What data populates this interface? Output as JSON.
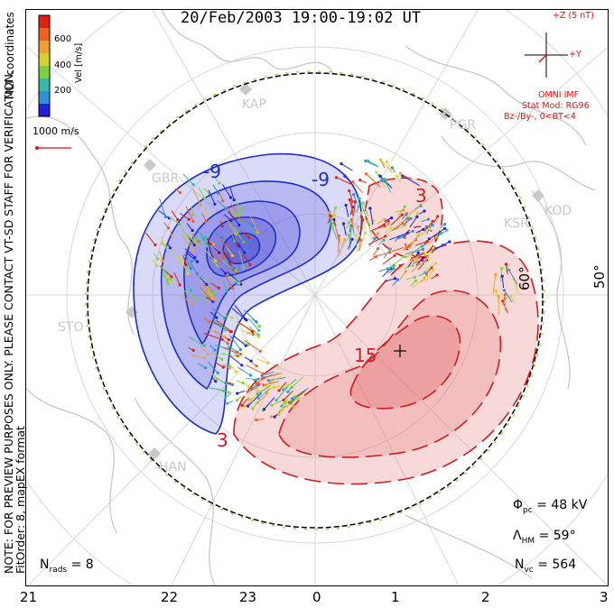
{
  "title": "20/Feb/2003 19:00-19:02 UT",
  "side_text": {
    "coords": "MLT coordinates",
    "note": "NOTE: FOR PREVIEW PURPOSES ONLY. PLEASE CONTACT VT-SD STAFF FOR VERIFICATION.",
    "fit": "FitOrder: 8, mapEX format"
  },
  "colorbar": {
    "label": "Vel [m/s]",
    "ticks": [
      "600",
      "400",
      "200"
    ],
    "colors": [
      "#1f1fe0",
      "#2f8fd8",
      "#37b8a8",
      "#7fd040",
      "#d8d030",
      "#f0a030",
      "#f06020",
      "#e02010"
    ]
  },
  "scale_vector": {
    "label": "1000 m/s",
    "color": "#dd1111"
  },
  "imf": {
    "axis_z": "+Z (5 nT)",
    "axis_y": "+Y",
    "source": "OMNI IMF",
    "stat_mod": "Stat Mod: RG96",
    "condition": "Bz-/By-, 0<BT<4",
    "color": "#dd1111"
  },
  "stations": [
    "KAP",
    "PGR",
    "KOD",
    "KSR",
    "STO",
    "HAN",
    "GBR"
  ],
  "latitude_label_right": "50°",
  "latitude_label_inner": "60°",
  "contour_labels": {
    "negative": [
      "-9",
      "-9"
    ],
    "positive": [
      "3",
      "15",
      "3"
    ]
  },
  "colors": {
    "negative_cell": "#2040c0",
    "positive_cell": "#d03030"
  },
  "stats": {
    "pcp": "= 48 kV",
    "hm": "= 59°",
    "nvc": "= 564",
    "nrads": "= 8"
  },
  "mlt_axis": [
    "21",
    "22",
    "23",
    "0",
    "1",
    "2",
    "3"
  ]
}
